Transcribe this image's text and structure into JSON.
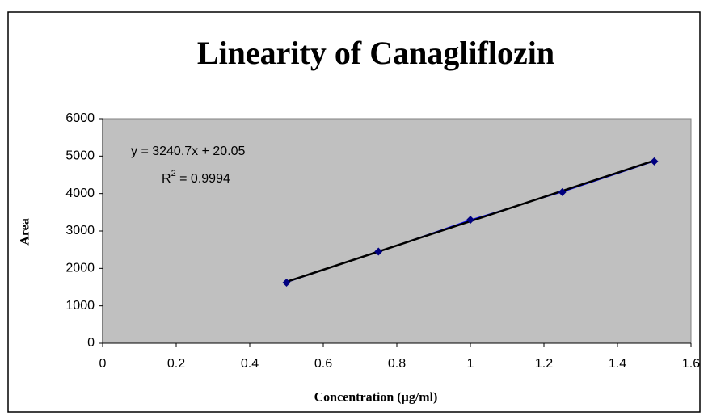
{
  "chart_data": {
    "type": "scatter",
    "title": "Linearity of Canagliflozin",
    "x_label": "Concentration (µg/ml)",
    "y_label": "Area",
    "x": [
      0.5,
      0.75,
      1.0,
      1.25,
      1.5
    ],
    "series": [
      {
        "color": "#000080",
        "values": [
          1620,
          2450,
          3300,
          4040,
          4860
        ]
      }
    ],
    "trendline": {
      "slope": 3240.7,
      "intercept": 20.05,
      "color": "#000000",
      "equation": "y = 3240.7x + 20.05",
      "r_squared": {
        "symbol": "R",
        "exponent": "2",
        "text": " = 0.9994"
      }
    },
    "xlim": [
      0,
      1.6
    ],
    "xticks": [
      0,
      0.2,
      0.4,
      0.6,
      0.8,
      1,
      1.2,
      1.4,
      1.6
    ],
    "ylim": [
      0,
      6000
    ],
    "yticks": [
      0,
      1000,
      2000,
      3000,
      4000,
      5000,
      6000
    ],
    "grid": false,
    "plot_background": "#c0c0c0"
  }
}
